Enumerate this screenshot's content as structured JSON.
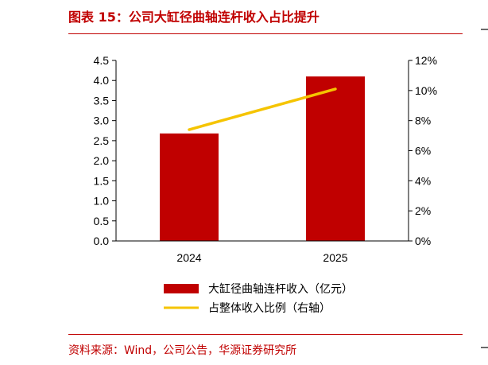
{
  "header": {
    "title": "图表 15：公司大缸径曲轴连杆收入占比提升"
  },
  "footer": {
    "source": "资料来源：Wind，公司公告，华源证券研究所"
  },
  "colors": {
    "accent": "#c00000",
    "bar": "#c00000",
    "line": "#f5c400"
  },
  "chart_data": {
    "type": "bar",
    "categories": [
      "2024",
      "2025"
    ],
    "series": [
      {
        "name": "大缸径曲轴连杆收入（亿元）",
        "type": "bar",
        "axis": "left",
        "values": [
          2.68,
          4.1
        ]
      },
      {
        "name": "占整体收入比例（右轴）",
        "type": "line",
        "axis": "right",
        "values": [
          7.4,
          10.1
        ]
      }
    ],
    "ylim": [
      0,
      4.5
    ],
    "y_ticks": [
      "0.0",
      "0.5",
      "1.0",
      "1.5",
      "2.0",
      "2.5",
      "3.0",
      "3.5",
      "4.0",
      "4.5"
    ],
    "y2lim": [
      0,
      12
    ],
    "y2_ticks": [
      "0%",
      "2%",
      "4%",
      "6%",
      "8%",
      "10%",
      "12%"
    ],
    "legend_position": "bottom",
    "grid": false
  }
}
